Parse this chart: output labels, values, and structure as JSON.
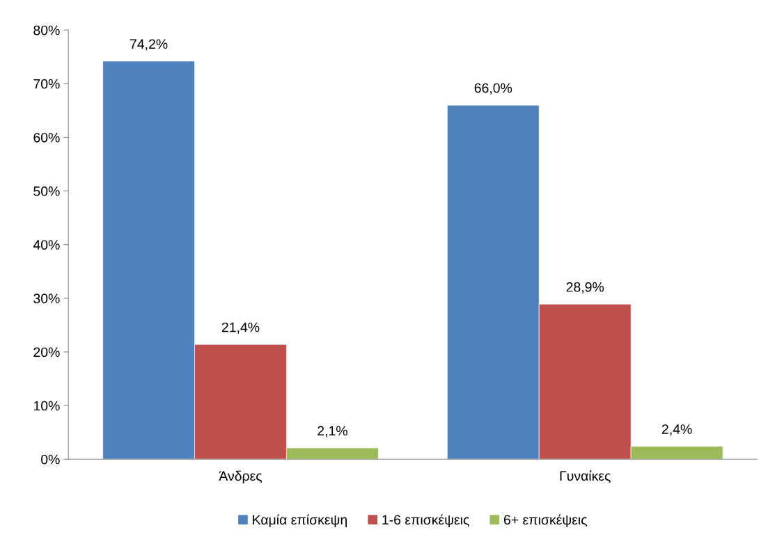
{
  "chart_data": {
    "type": "bar",
    "categories": [
      "Άνδρες",
      "Γυναίκες"
    ],
    "series": [
      {
        "name": "Καμία επίσκεψη",
        "color": "#4f81bd",
        "values": [
          74.2,
          66.0
        ],
        "value_labels": [
          "74,2%",
          "66,0%"
        ]
      },
      {
        "name": "1-6 επισκέψεις",
        "color": "#c0504d",
        "values": [
          21.4,
          28.9
        ],
        "value_labels": [
          "21,4%",
          "28,9%"
        ]
      },
      {
        "name": "6+ επισκέψεις",
        "color": "#9bbb59",
        "values": [
          2.1,
          2.4
        ],
        "value_labels": [
          "2,1%",
          "2,4%"
        ]
      }
    ],
    "ylim": [
      0,
      80
    ],
    "yticks": [
      {
        "value": 0,
        "label": "0%"
      },
      {
        "value": 10,
        "label": "10%"
      },
      {
        "value": 20,
        "label": "20%"
      },
      {
        "value": 30,
        "label": "30%"
      },
      {
        "value": 40,
        "label": "40%"
      },
      {
        "value": 50,
        "label": "50%"
      },
      {
        "value": 60,
        "label": "60%"
      },
      {
        "value": 70,
        "label": "70%"
      },
      {
        "value": 80,
        "label": "80%"
      }
    ],
    "grid": false,
    "legend": "bottom"
  }
}
